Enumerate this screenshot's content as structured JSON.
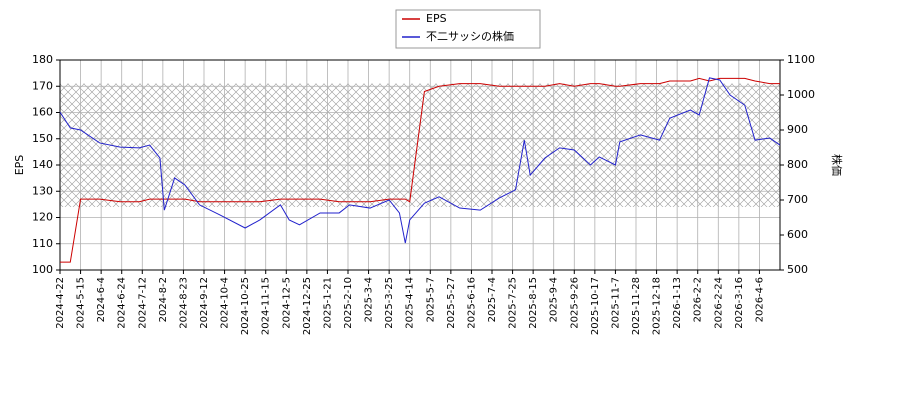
{
  "chart_data": {
    "type": "line",
    "y_label": "EPS",
    "y2_label": "株価",
    "x": [
      0,
      7,
      14,
      27,
      41,
      54,
      61,
      68,
      71,
      78,
      85,
      95,
      109,
      126,
      136,
      150,
      156,
      163,
      177,
      190,
      197,
      211,
      224,
      231,
      235,
      238,
      248,
      258,
      272,
      286,
      299,
      310,
      316,
      320,
      330,
      340,
      350,
      361,
      367,
      378,
      381,
      395,
      408,
      415,
      429,
      435,
      442,
      449,
      456,
      466,
      473,
      483,
      490
    ],
    "series": [
      {
        "name": "EPS",
        "color": "#cc0000",
        "values": [
          103,
          103,
          127,
          127,
          126,
          126,
          127,
          127,
          127,
          127,
          127,
          126,
          126,
          126,
          126,
          127,
          127,
          127,
          127,
          126,
          126,
          126,
          127,
          127,
          127,
          126,
          168,
          170,
          171,
          171,
          170,
          170,
          170,
          170,
          170,
          171,
          170,
          171,
          171,
          170,
          170,
          171,
          171,
          172,
          172,
          173,
          172,
          173,
          173,
          173,
          172,
          171,
          171
        ]
      },
      {
        "name": "不二サッシの株価",
        "color": "#2222cc",
        "axis": "y2",
        "values": [
          951,
          906,
          900,
          863,
          851,
          849,
          857,
          820,
          671,
          763,
          743,
          686,
          657,
          620,
          643,
          686,
          643,
          629,
          663,
          663,
          686,
          677,
          700,
          663,
          577,
          643,
          691,
          709,
          677,
          671,
          706,
          729,
          871,
          771,
          820,
          849,
          843,
          800,
          823,
          800,
          866,
          886,
          871,
          934,
          957,
          943,
          1049,
          1043,
          1000,
          971,
          871,
          877,
          857
        ]
      }
    ],
    "band_range": [
      124,
      171
    ],
    "xlim": [
      0,
      490
    ],
    "xticks": [
      {
        "value": 0,
        "label": "2024-4-22"
      },
      {
        "value": 14,
        "label": "2024-5-15"
      },
      {
        "value": 28,
        "label": "2024-6-4"
      },
      {
        "value": 42,
        "label": "2024-6-24"
      },
      {
        "value": 56,
        "label": "2024-7-12"
      },
      {
        "value": 70,
        "label": "2024-8-2"
      },
      {
        "value": 84,
        "label": "2024-8-23"
      },
      {
        "value": 98,
        "label": "2024-9-12"
      },
      {
        "value": 112,
        "label": "2024-10-4"
      },
      {
        "value": 126,
        "label": "2024-10-25"
      },
      {
        "value": 140,
        "label": "2024-11-15"
      },
      {
        "value": 154,
        "label": "2024-12-5"
      },
      {
        "value": 168,
        "label": "2024-12-25"
      },
      {
        "value": 182,
        "label": "2025-1-21"
      },
      {
        "value": 196,
        "label": "2025-2-10"
      },
      {
        "value": 210,
        "label": "2025-3-4"
      },
      {
        "value": 224,
        "label": "2025-3-25"
      },
      {
        "value": 238,
        "label": "2025-4-14"
      },
      {
        "value": 252,
        "label": "2025-5-7"
      },
      {
        "value": 266,
        "label": "2025-5-27"
      },
      {
        "value": 280,
        "label": "2025-6-16"
      },
      {
        "value": 294,
        "label": "2025-7-4"
      },
      {
        "value": 308,
        "label": "2025-7-25"
      },
      {
        "value": 322,
        "label": "2025-8-15"
      },
      {
        "value": 336,
        "label": "2025-9-4"
      },
      {
        "value": 350,
        "label": "2025-9-26"
      },
      {
        "value": 364,
        "label": "2025-10-17"
      },
      {
        "value": 378,
        "label": "2025-11-7"
      },
      {
        "value": 392,
        "label": "2025-11-28"
      },
      {
        "value": 406,
        "label": "2025-12-18"
      },
      {
        "value": 420,
        "label": "2026-1-13"
      },
      {
        "value": 434,
        "label": "2026-2-2"
      },
      {
        "value": 448,
        "label": "2026-2-24"
      },
      {
        "value": 462,
        "label": "2026-3-16"
      },
      {
        "value": 476,
        "label": "2026-4-6"
      }
    ],
    "ylim": [
      100,
      180
    ],
    "yticks": [
      100,
      110,
      120,
      130,
      140,
      150,
      160,
      170,
      180
    ],
    "y2lim": [
      500,
      1100
    ],
    "y2ticks": [
      500,
      600,
      700,
      800,
      900,
      1000,
      1100
    ],
    "grid": true,
    "legend": "top"
  }
}
